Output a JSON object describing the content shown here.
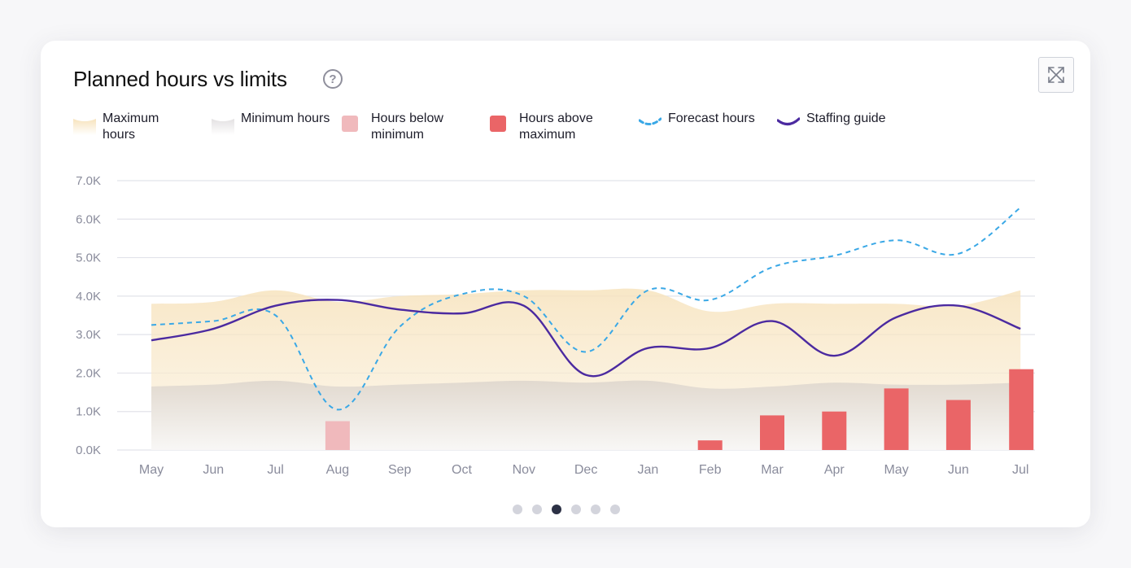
{
  "header": {
    "title": "Planned hours vs limits",
    "help_glyph": "?",
    "help_icon": "help-circle-icon",
    "expand_icon": "expand-arrows-icon"
  },
  "legend": [
    {
      "key": "max",
      "label": "Maximum hours",
      "color": "#f6e1b8"
    },
    {
      "key": "min",
      "label": "Minimum hours",
      "color": "#e4e1e0"
    },
    {
      "key": "below",
      "label": "Hours below minimum",
      "color": "#f0b9bc"
    },
    {
      "key": "above",
      "label": "Hours above maximum",
      "color": "#ea6567"
    },
    {
      "key": "fcst",
      "label": "Forecast hours",
      "color": "#3aa8e6"
    },
    {
      "key": "staff",
      "label": "Staffing guide",
      "color": "#4b2aa0"
    }
  ],
  "pagination": {
    "count": 6,
    "active_index": 2
  },
  "chart_data": {
    "type": "line",
    "title": "Planned hours vs limits",
    "xlabel": "",
    "ylabel": "",
    "ylim": [
      0,
      7000
    ],
    "yticks": [
      0,
      1000,
      2000,
      3000,
      4000,
      5000,
      6000,
      7000
    ],
    "ytick_labels": [
      "0.0K",
      "1.0K",
      "2.0K",
      "3.0K",
      "4.0K",
      "5.0K",
      "6.0K",
      "7.0K"
    ],
    "categories": [
      "May",
      "Jun",
      "Jul",
      "Aug",
      "Sep",
      "Oct",
      "Nov",
      "Dec",
      "Jan",
      "Feb",
      "Mar",
      "Apr",
      "May",
      "Jun",
      "Jul"
    ],
    "grid": true,
    "series": [
      {
        "name": "Maximum hours",
        "type": "area",
        "values": [
          3800,
          3850,
          4150,
          3850,
          4000,
          4050,
          4150,
          4150,
          4150,
          3600,
          3800,
          3800,
          3800,
          3750,
          4150
        ]
      },
      {
        "name": "Minimum hours",
        "type": "area",
        "values": [
          1650,
          1700,
          1800,
          1650,
          1700,
          1750,
          1800,
          1750,
          1800,
          1600,
          1650,
          1750,
          1700,
          1700,
          1750
        ]
      },
      {
        "name": "Hours below minimum",
        "type": "bar",
        "values": [
          0,
          0,
          0,
          750,
          0,
          0,
          0,
          0,
          0,
          0,
          0,
          0,
          0,
          0,
          0
        ]
      },
      {
        "name": "Hours above maximum",
        "type": "bar",
        "values": [
          0,
          0,
          0,
          0,
          0,
          0,
          0,
          0,
          0,
          250,
          900,
          1000,
          1600,
          1300,
          2100
        ]
      },
      {
        "name": "Forecast hours",
        "type": "line",
        "style": "dashed",
        "values": [
          3250,
          3350,
          3500,
          1050,
          3200,
          4050,
          4000,
          2550,
          4150,
          3900,
          4750,
          5050,
          5450,
          5100,
          6300
        ]
      },
      {
        "name": "Staffing guide",
        "type": "line",
        "values": [
          2850,
          3150,
          3750,
          3900,
          3650,
          3550,
          3750,
          1950,
          2650,
          2650,
          3350,
          2450,
          3450,
          3750,
          3150
        ]
      }
    ]
  }
}
